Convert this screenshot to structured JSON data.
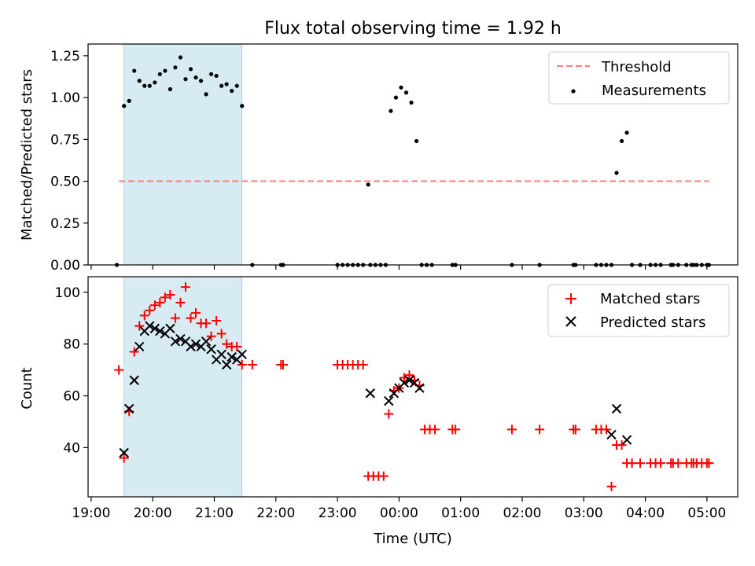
{
  "title": "Flux total observing time = 1.92 h",
  "colors": {
    "threshold": "#ff7f7f",
    "measurement": "#000000",
    "matched": "#ff0000",
    "predicted": "#000000",
    "shade": "#add8e6"
  },
  "chart_data": [
    {
      "type": "scatter",
      "ylabel": "Matched/Predicted stars",
      "ylim": [
        0,
        1.32
      ],
      "yticks": [
        "0.00",
        "0.25",
        "0.50",
        "0.75",
        "1.00",
        "1.25"
      ],
      "ytick_values": [
        0,
        0.25,
        0.5,
        0.75,
        1.0,
        1.25
      ],
      "x_unit": "hours after 19:00 UTC",
      "xlim": [
        -0.05,
        10.5
      ],
      "shaded_interval": [
        "19:32",
        "21:27"
      ],
      "legend": {
        "placement": "upper right",
        "entries": [
          "Threshold",
          "Measurements"
        ]
      },
      "threshold": {
        "name": "Threshold",
        "y": 0.5,
        "x_start": "19:27",
        "x_end": "05:02"
      },
      "measurements": {
        "name": "Measurements",
        "x": [
          "19:25",
          "19:32",
          "19:37",
          "19:42",
          "19:47",
          "19:52",
          "19:57",
          "20:02",
          "20:07",
          "20:12",
          "20:17",
          "20:22",
          "20:27",
          "20:32",
          "20:37",
          "20:42",
          "20:47",
          "20:52",
          "20:57",
          "21:02",
          "21:07",
          "21:12",
          "21:17",
          "21:22",
          "21:27",
          "21:37",
          "22:05",
          "22:07",
          "23:00",
          "23:05",
          "23:10",
          "23:15",
          "23:20",
          "23:25",
          "23:30",
          "23:32",
          "23:37",
          "23:42",
          "23:47",
          "23:52",
          "23:57",
          "00:02",
          "00:07",
          "00:12",
          "00:17",
          "00:22",
          "00:27",
          "00:32",
          "00:52",
          "00:55",
          "01:50",
          "02:17",
          "02:50",
          "02:52",
          "03:12",
          "03:17",
          "03:22",
          "03:27",
          "03:32",
          "03:37",
          "03:42",
          "03:47",
          "03:55",
          "04:05",
          "04:10",
          "04:15",
          "04:25",
          "04:27",
          "04:32",
          "04:40",
          "04:45",
          "04:47",
          "04:50",
          "04:55",
          "05:00",
          "05:02"
        ],
        "y": [
          0,
          0.95,
          0.98,
          1.16,
          1.1,
          1.07,
          1.07,
          1.09,
          1.14,
          1.16,
          1.05,
          1.18,
          1.24,
          1.11,
          1.17,
          1.12,
          1.1,
          1.02,
          1.14,
          1.13,
          1.07,
          1.08,
          1.04,
          1.07,
          0.95,
          0,
          0,
          0,
          0,
          0,
          0,
          0,
          0,
          0,
          0.48,
          0,
          0,
          0,
          0,
          0.92,
          1.0,
          1.06,
          1.03,
          0.97,
          0.74,
          0,
          0,
          0,
          0,
          0,
          0,
          0,
          0,
          0,
          0,
          0,
          0,
          0,
          0.55,
          0.74,
          0.79,
          0,
          0,
          0,
          0,
          0,
          0,
          0,
          0,
          0,
          0,
          0,
          0,
          0,
          0,
          0
        ]
      }
    },
    {
      "type": "scatter",
      "ylabel": "Count",
      "xlabel": "Time (UTC)",
      "ylim": [
        21,
        106
      ],
      "yticks": [
        "40",
        "60",
        "80",
        "100"
      ],
      "ytick_values": [
        40,
        60,
        80,
        100
      ],
      "xticks": [
        "19:00",
        "20:00",
        "21:00",
        "22:00",
        "23:00",
        "00:00",
        "01:00",
        "02:00",
        "03:00",
        "04:00",
        "05:00"
      ],
      "xtick_values": [
        0,
        1,
        2,
        3,
        4,
        5,
        6,
        7,
        8,
        9,
        10
      ],
      "x_unit": "hours after 19:00 UTC",
      "xlim": [
        -0.05,
        10.5
      ],
      "shaded_interval": [
        "19:32",
        "21:27"
      ],
      "legend": {
        "placement": "upper right",
        "entries": [
          "Matched stars",
          "Predicted stars"
        ]
      },
      "matched": {
        "name": "Matched stars",
        "x": [
          "19:27",
          "19:32",
          "19:37",
          "19:42",
          "19:47",
          "19:52",
          "19:57",
          "20:02",
          "20:07",
          "20:12",
          "20:17",
          "20:22",
          "20:27",
          "20:32",
          "20:37",
          "20:42",
          "20:47",
          "20:52",
          "20:57",
          "21:02",
          "21:07",
          "21:12",
          "21:17",
          "21:22",
          "21:27",
          "21:37",
          "22:05",
          "22:07",
          "23:00",
          "23:05",
          "23:10",
          "23:15",
          "23:20",
          "23:25",
          "23:30",
          "23:35",
          "23:40",
          "23:45",
          "23:50",
          "23:55",
          "00:00",
          "00:05",
          "00:10",
          "00:15",
          "00:20",
          "00:25",
          "00:30",
          "00:35",
          "00:52",
          "00:55",
          "01:50",
          "02:17",
          "02:50",
          "02:52",
          "03:12",
          "03:17",
          "03:22",
          "03:27",
          "03:32",
          "03:37",
          "03:42",
          "03:47",
          "03:55",
          "04:05",
          "04:10",
          "04:15",
          "04:25",
          "04:27",
          "04:32",
          "04:40",
          "04:45",
          "04:47",
          "04:50",
          "04:55",
          "05:00",
          "05:02"
        ],
        "y": [
          70,
          36,
          54,
          77,
          87,
          91,
          93,
          95,
          96,
          98,
          99,
          90,
          96,
          102,
          90,
          92,
          88,
          88,
          83,
          89,
          84,
          80,
          79,
          79,
          72,
          72,
          72,
          72,
          72,
          72,
          72,
          72,
          72,
          72,
          29,
          29,
          29,
          29,
          53,
          62,
          63,
          67,
          68,
          66,
          64,
          47,
          47,
          47,
          47,
          47,
          47,
          47,
          47,
          47,
          47,
          47,
          47,
          25,
          41,
          41,
          34,
          34,
          34,
          34,
          34,
          34,
          34,
          34,
          34,
          34,
          34,
          34,
          34,
          34,
          34,
          34
        ]
      },
      "predicted": {
        "name": "Predicted stars",
        "x": [
          "19:32",
          "19:37",
          "19:42",
          "19:47",
          "19:52",
          "19:57",
          "20:02",
          "20:07",
          "20:12",
          "20:17",
          "20:22",
          "20:27",
          "20:32",
          "20:37",
          "20:42",
          "20:47",
          "20:52",
          "20:57",
          "21:02",
          "21:07",
          "21:12",
          "21:17",
          "21:22",
          "21:27",
          "23:32",
          "23:50",
          "23:55",
          "00:00",
          "00:05",
          "00:10",
          "00:15",
          "00:20",
          "03:27",
          "03:32",
          "03:42"
        ],
        "y": [
          38,
          55,
          66,
          79,
          85,
          87,
          86,
          85,
          84,
          86,
          81,
          82,
          81,
          79,
          80,
          79,
          81,
          78,
          74,
          76,
          72,
          75,
          74,
          76,
          61,
          58,
          61,
          63,
          65,
          66,
          65,
          63,
          45,
          55,
          43
        ]
      }
    }
  ]
}
